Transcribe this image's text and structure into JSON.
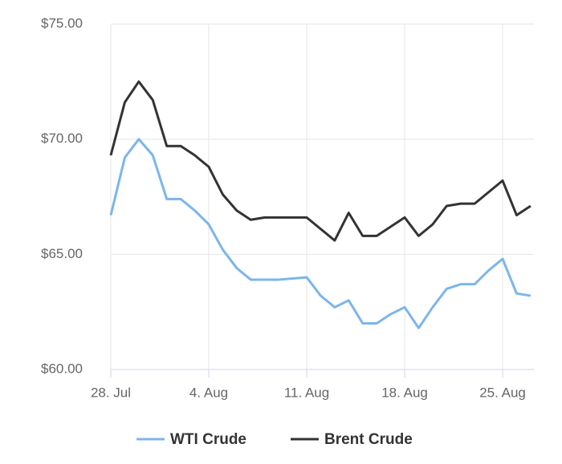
{
  "chart_data": {
    "type": "line",
    "categories": [
      "28. Jul",
      null,
      null,
      null,
      null,
      null,
      null,
      "4. Aug",
      null,
      null,
      null,
      null,
      null,
      null,
      "11. Aug",
      null,
      null,
      null,
      null,
      null,
      null,
      "18. Aug",
      null,
      null,
      null,
      null,
      null,
      null,
      "25. Aug",
      null,
      null
    ],
    "series": [
      {
        "name": "WTI Crude",
        "color": "#7cb5ec",
        "values": [
          66.7,
          69.2,
          70.0,
          69.3,
          67.4,
          67.4,
          66.9,
          66.3,
          65.2,
          64.4,
          63.9,
          63.9,
          63.9,
          63.95,
          64.0,
          63.2,
          62.7,
          63.0,
          62.0,
          62.0,
          62.4,
          62.7,
          61.8,
          62.7,
          63.5,
          63.7,
          63.7,
          64.3,
          64.8,
          63.3,
          63.2
        ]
      },
      {
        "name": "Brent Crude",
        "color": "#333333",
        "values": [
          69.3,
          71.6,
          72.5,
          71.7,
          69.7,
          69.7,
          69.3,
          68.8,
          67.6,
          66.9,
          66.5,
          66.6,
          66.6,
          66.6,
          66.6,
          66.1,
          65.6,
          66.8,
          65.8,
          65.8,
          66.2,
          66.6,
          65.8,
          66.3,
          67.1,
          67.2,
          67.2,
          67.7,
          68.2,
          66.7,
          67.1
        ]
      }
    ],
    "ylim": [
      60,
      75
    ],
    "yticks": [
      {
        "value": 60,
        "label": "$60.00"
      },
      {
        "value": 65,
        "label": "$65.00"
      },
      {
        "value": 70,
        "label": "$70.00"
      },
      {
        "value": 75,
        "label": "$75.00"
      }
    ],
    "grid": true,
    "legend": "bottom"
  }
}
